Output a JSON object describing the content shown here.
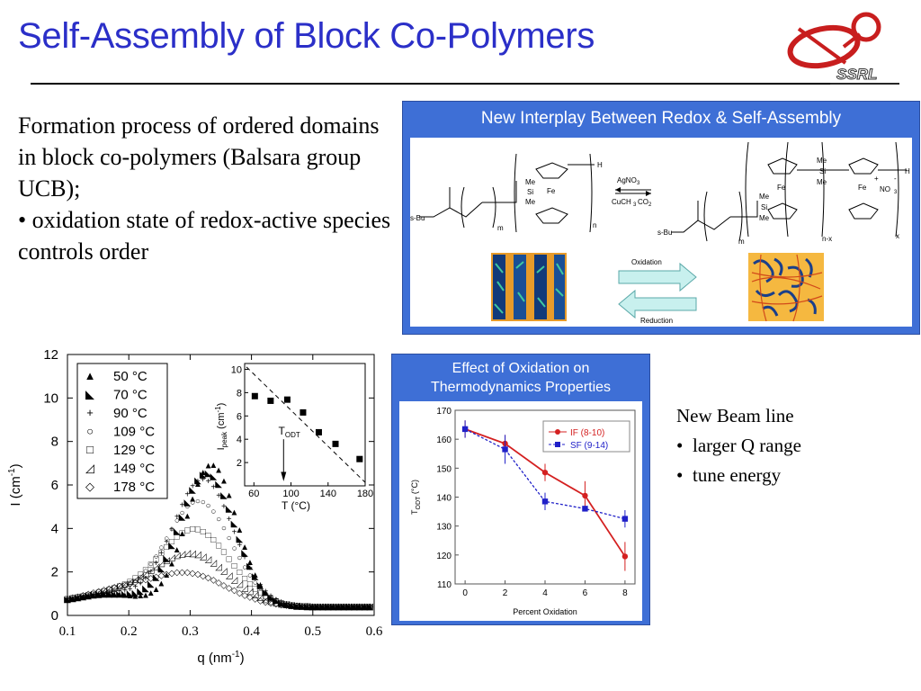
{
  "header": {
    "title": "Self-Assembly of Block Co-Polymers",
    "logo_text": "SSRL"
  },
  "intro": {
    "paragraph": "Formation process of ordered domains in block co-polymers (Balsara group UCB);",
    "bullet": "• oxidation state of redox-active species controls order"
  },
  "redox_panel": {
    "title": "New Interplay Between Redox & Self-Assembly",
    "reagents": [
      "AgNO",
      "3",
      "CuCH",
      "3",
      "CO",
      "2"
    ],
    "oxidation_label": "Oxidation",
    "reduction_label": "Reduction",
    "left_chem": {
      "sbu": "s-Bu",
      "me1": "Me",
      "si": "Si",
      "me2": "Me",
      "fe": "Fe",
      "h": "H",
      "m": "m",
      "n": "n"
    },
    "right_chem": {
      "sbu": "s-Bu",
      "me1": "Me",
      "si": "Si",
      "me2": "Me",
      "fe1": "Fe",
      "me3": "Me",
      "si2": "Si",
      "me4": "Me",
      "fe2": "Fe",
      "plus": "+",
      "minus": "-",
      "no3": "NO",
      "no3sub": "3",
      "h": "H",
      "m": "m",
      "nx": "n-x",
      "x": "x"
    }
  },
  "saxs_chart": {
    "chart_data": {
      "type": "scatter",
      "xlabel": "q (nm",
      "xlabel_sup": "-1",
      "xlabel_close": ")",
      "ylabel": "I (cm",
      "ylabel_sup": "-1",
      "ylabel_close": ")",
      "xlim": [
        0.1,
        0.6
      ],
      "ylim": [
        0,
        12
      ],
      "xticks": [
        "0.1",
        "0.2",
        "0.3",
        "0.4",
        "0.5",
        "0.6"
      ],
      "yticks": [
        "0",
        "2",
        "4",
        "6",
        "8",
        "10",
        "12"
      ],
      "legend_position": "top-left",
      "series": [
        {
          "name": "50 °C",
          "marker": "▲",
          "peak": 7.7
        },
        {
          "name": "70 °C",
          "marker": "◣",
          "peak": 7.3
        },
        {
          "name": "90 °C",
          "marker": "+",
          "peak": 7.0
        },
        {
          "name": "109 °C",
          "marker": "○",
          "peak": 6.0
        },
        {
          "name": "129 °C",
          "marker": "□",
          "peak": 4.7
        },
        {
          "name": "149 °C",
          "marker": "◿",
          "peak": 3.6
        },
        {
          "name": "178 °C",
          "marker": "◇",
          "peak": 2.7
        }
      ],
      "inset": {
        "type": "scatter",
        "xlabel": "T (°C)",
        "ylabel": "I",
        "ylabel_sub": "peak",
        "ylabel_unit": "(cm",
        "ylabel_sup": "-1",
        "ylabel_close": ")",
        "xticks": [
          "60",
          "100",
          "140",
          "180"
        ],
        "yticks": [
          "2",
          "4",
          "6",
          "8",
          "10"
        ],
        "xlim": [
          50,
          180
        ],
        "ylim": [
          0,
          10.5
        ],
        "x": [
          61,
          78,
          96,
          113,
          130,
          148,
          174
        ],
        "y": [
          7.7,
          7.3,
          7.4,
          6.3,
          4.6,
          3.6,
          2.3
        ],
        "annotation": "T",
        "annotation_sub": "ODT"
      }
    }
  },
  "oxidation_panel": {
    "title_line1": "Effect of Oxidation on",
    "title_line2": "Thermodynamics Properties",
    "chart_data": {
      "type": "line",
      "xlabel": "Percent Oxidation",
      "ylabel": "T",
      "ylabel_sub": "ODT",
      "ylabel_unit": "(°C)",
      "xlim": [
        -0.5,
        8.5
      ],
      "ylim": [
        110,
        170
      ],
      "xticks": [
        "0",
        "2",
        "4",
        "6",
        "8"
      ],
      "yticks": [
        "110",
        "120",
        "130",
        "140",
        "150",
        "160",
        "170"
      ],
      "legend_position": "top-right",
      "series": [
        {
          "name": "IF (8-10)",
          "color": "#d42020",
          "x": [
            0,
            2,
            4,
            6,
            8
          ],
          "y": [
            163.5,
            158.5,
            148.5,
            140.5,
            119.5
          ]
        },
        {
          "name": "SF (9-14)",
          "color": "#2020c8",
          "x": [
            0,
            2,
            4,
            6,
            8
          ],
          "y": [
            163.5,
            156.5,
            138.5,
            136,
            132.5
          ]
        }
      ]
    }
  },
  "notes": {
    "heading": "New Beam line",
    "bullets": [
      "larger Q range",
      "tune energy"
    ],
    "bullet_char": "•"
  }
}
